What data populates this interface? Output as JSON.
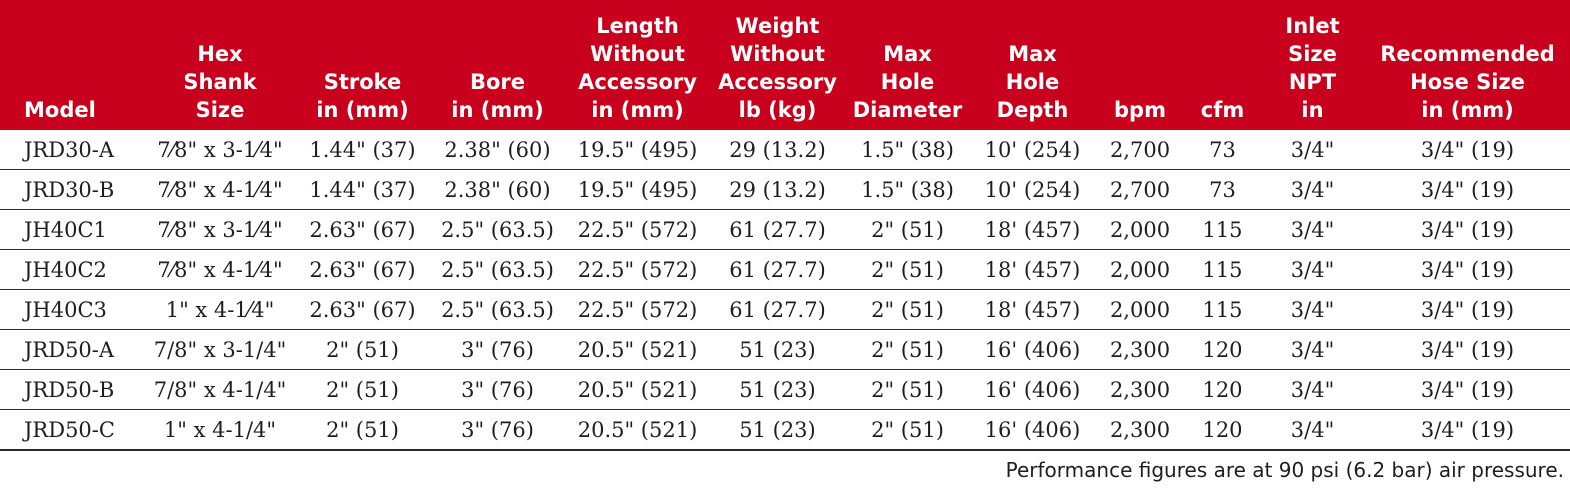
{
  "table": {
    "headers": [
      "Model",
      "Hex\nShank\nSize",
      "Stroke\nin (mm)",
      "Bore\nin (mm)",
      "Length\nWithout\nAccessory\nin (mm)",
      "Weight\nWithout\nAccessory\nlb (kg)",
      "Max\nHole\nDiameter",
      "Max\nHole\nDepth",
      "bpm",
      "cfm",
      "Inlet\nSize\nNPT\nin",
      "Recommended\nHose Size\nin (mm)"
    ],
    "rows": [
      [
        "JRD30-A",
        "7⁄8\" x 3-1⁄4\"",
        "1.44\" (37)",
        "2.38\" (60)",
        "19.5\" (495)",
        "29 (13.2)",
        "1.5\" (38)",
        "10' (254)",
        "2,700",
        "73",
        "3/4\"",
        "3/4\" (19)"
      ],
      [
        "JRD30-B",
        "7⁄8\" x 4-1⁄4\"",
        "1.44\" (37)",
        "2.38\" (60)",
        "19.5\" (495)",
        "29 (13.2)",
        "1.5\" (38)",
        "10' (254)",
        "2,700",
        "73",
        "3/4\"",
        "3/4\" (19)"
      ],
      [
        "JH40C1",
        "7⁄8\" x 3-1⁄4\"",
        "2.63\" (67)",
        "2.5\" (63.5)",
        "22.5\" (572)",
        "61 (27.7)",
        "2\" (51)",
        "18' (457)",
        "2,000",
        "115",
        "3/4\"",
        "3/4\" (19)"
      ],
      [
        "JH40C2",
        "7⁄8\" x 4-1⁄4\"",
        "2.63\" (67)",
        "2.5\" (63.5)",
        "22.5\" (572)",
        "61 (27.7)",
        "2\" (51)",
        "18' (457)",
        "2,000",
        "115",
        "3/4\"",
        "3/4\" (19)"
      ],
      [
        "JH40C3",
        "1\" x 4-1⁄4\"",
        "2.63\" (67)",
        "2.5\" (63.5)",
        "22.5\" (572)",
        "61 (27.7)",
        "2\" (51)",
        "18' (457)",
        "2,000",
        "115",
        "3/4\"",
        "3/4\" (19)"
      ],
      [
        "JRD50-A",
        "7/8\" x 3-1/4\"",
        "2\" (51)",
        "3\" (76)",
        "20.5\" (521)",
        "51 (23)",
        "2\" (51)",
        "16' (406)",
        "2,300",
        "120",
        "3/4\"",
        "3/4\" (19)"
      ],
      [
        "JRD50-B",
        "7/8\" x 4-1/4\"",
        "2\" (51)",
        "3\" (76)",
        "20.5\" (521)",
        "51 (23)",
        "2\" (51)",
        "16' (406)",
        "2,300",
        "120",
        "3/4\"",
        "3/4\" (19)"
      ],
      [
        "JRD50-C",
        "1\" x 4-1/4\"",
        "2\" (51)",
        "3\" (76)",
        "20.5\" (521)",
        "51 (23)",
        "2\" (51)",
        "16' (406)",
        "2,300",
        "120",
        "3/4\"",
        "3/4\" (19)"
      ]
    ]
  },
  "footnote": "Performance figures are at 90 psi (6.2 bar) air pressure.",
  "colors": {
    "header_bg": "#c8001d",
    "header_text": "#ffffff",
    "body_text": "#1e1e1e"
  }
}
